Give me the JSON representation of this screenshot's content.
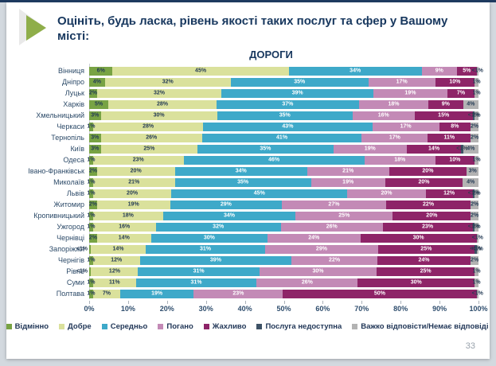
{
  "slide": {
    "title": "Оцініть, будь ласка, рівень якості таких послуг та сфер у Вашому місті:",
    "page_number": "33",
    "accent_color": "#8fae4a",
    "frame_color": "#1e3a5f"
  },
  "chart_data": {
    "type": "bar",
    "stacked": true,
    "orientation": "horizontal",
    "title": "ДОРОГИ",
    "xlabel": "",
    "ylabel": "",
    "xlim": [
      0,
      100
    ],
    "x_ticks": [
      "0%",
      "10%",
      "20%",
      "30%",
      "40%",
      "50%",
      "60%",
      "70%",
      "80%",
      "90%",
      "100%"
    ],
    "grid": false,
    "legend_position": "bottom",
    "categories": [
      "Вінниця",
      "Дніпро",
      "Луцьк",
      "Харків",
      "Хмельницький",
      "Черкаси",
      "Тернопіль",
      "Київ",
      "Одеса",
      "Івано-Франківськ",
      "Миколаїв",
      "Львів",
      "Житомир",
      "Кропивницький",
      "Ужгород",
      "Чернівці",
      "Запоріжжя",
      "Чернігів",
      "Рівне",
      "Суми",
      "Полтава"
    ],
    "series": [
      {
        "name": "Відмінно",
        "color": "#78a344",
        "label_color": "#243b55",
        "values": [
          6,
          4,
          2,
          5,
          3,
          1,
          3,
          3,
          1,
          2,
          1,
          1,
          2,
          1,
          1,
          2,
          0.5,
          1,
          0.5,
          1,
          1
        ],
        "labels": [
          "6%",
          "4%",
          "2%",
          "5%",
          "3%",
          "1%",
          "3%",
          "3%",
          "1%",
          "2%",
          "1%",
          "1%",
          "2%",
          "1%",
          "1%",
          "2%",
          "<1%",
          "1%",
          "<1%",
          "1%",
          "1%"
        ]
      },
      {
        "name": "Добре",
        "color": "#dae19c",
        "label_color": "#243b55",
        "values": [
          45,
          32,
          32,
          28,
          30,
          28,
          26,
          25,
          23,
          20,
          21,
          20,
          19,
          18,
          16,
          14,
          14,
          12,
          12,
          11,
          7
        ],
        "labels": [
          "45%",
          "32%",
          "32%",
          "28%",
          "30%",
          "28%",
          "26%",
          "25%",
          "23%",
          "20%",
          "21%",
          "20%",
          "19%",
          "18%",
          "16%",
          "14%",
          "14%",
          "12%",
          "12%",
          "11%",
          "7%"
        ]
      },
      {
        "name": "Середньо",
        "color": "#3ea9c9",
        "label_color": "#ffffff",
        "values": [
          34,
          35,
          39,
          37,
          35,
          43,
          41,
          35,
          46,
          34,
          35,
          45,
          29,
          34,
          32,
          30,
          31,
          39,
          31,
          31,
          19
        ],
        "labels": [
          "34%",
          "35%",
          "39%",
          "37%",
          "35%",
          "43%",
          "41%",
          "35%",
          "46%",
          "34%",
          "35%",
          "45%",
          "29%",
          "34%",
          "32%",
          "30%",
          "31%",
          "39%",
          "31%",
          "31%",
          "19%"
        ]
      },
      {
        "name": "Погано",
        "color": "#c38ab6",
        "label_color": "#ffffff",
        "values": [
          9,
          17,
          19,
          18,
          16,
          17,
          17,
          19,
          18,
          21,
          19,
          20,
          27,
          25,
          26,
          24,
          29,
          22,
          30,
          26,
          23
        ],
        "labels": [
          "9%",
          "17%",
          "19%",
          "18%",
          "16%",
          "17%",
          "17%",
          "19%",
          "18%",
          "21%",
          "19%",
          "20%",
          "27%",
          "25%",
          "26%",
          "24%",
          "29%",
          "22%",
          "30%",
          "26%",
          "23%"
        ]
      },
      {
        "name": "Жахливо",
        "color": "#8e2468",
        "label_color": "#ffffff",
        "values": [
          5,
          10,
          7,
          9,
          15,
          8,
          11,
          14,
          10,
          20,
          20,
          12,
          22,
          20,
          23,
          30,
          25,
          24,
          25,
          30,
          50
        ],
        "labels": [
          "5%",
          "10%",
          "7%",
          "9%",
          "15%",
          "8%",
          "11%",
          "14%",
          "10%",
          "20%",
          "20%",
          "12%",
          "22%",
          "20%",
          "23%",
          "30%",
          "25%",
          "24%",
          "25%",
          "30%",
          "50%"
        ]
      },
      {
        "name": "Послуга недоступна",
        "color": "#3e5266",
        "label_color": "#2f3e4e",
        "values": [
          0,
          0,
          0,
          0,
          0.5,
          0,
          0,
          0.5,
          0,
          0,
          0,
          0.5,
          0,
          0,
          0.5,
          0,
          0.5,
          0,
          0,
          0,
          0
        ],
        "labels": [
          "",
          "",
          "",
          "",
          "<1%",
          "",
          "",
          "<1%",
          "",
          "",
          "",
          "<1%",
          "",
          "",
          "<1%",
          "",
          "<1%",
          "",
          "",
          "",
          ""
        ]
      },
      {
        "name": "Важко відповісти/Немає відповіді",
        "color": "#b3b3b3",
        "label_color": "#243b55",
        "values": [
          0.5,
          1,
          1,
          4,
          1,
          2,
          2,
          4,
          1,
          3,
          4,
          1,
          2,
          2,
          1,
          0.5,
          0.5,
          2,
          1,
          1,
          0.5
        ],
        "labels": [
          "<1%",
          "1%",
          "1%",
          "4%",
          "1%",
          "2%",
          "2%",
          "4%",
          "1%",
          "3%",
          "4%",
          "1%",
          "2%",
          "2%",
          "1%",
          "<1%",
          "<1%",
          "2%",
          "1%",
          "1%",
          "<1%"
        ]
      }
    ]
  }
}
